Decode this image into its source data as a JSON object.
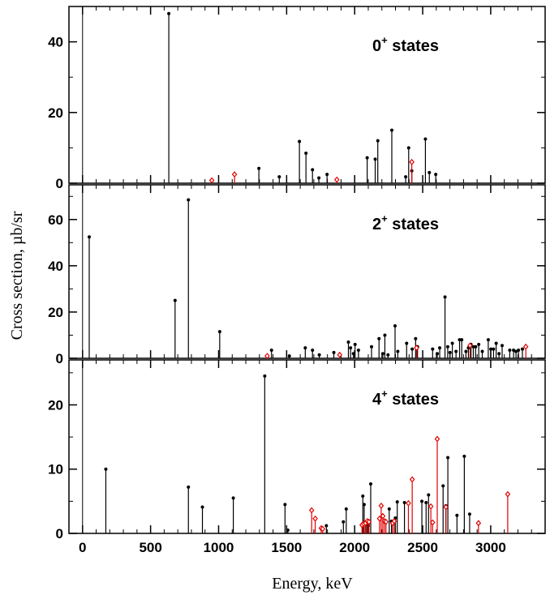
{
  "chart_data": {
    "type": "stem",
    "xlabel": "Energy, keV",
    "ylabel": "Cross section, µb/sr",
    "xlim": [
      -100,
      3400
    ],
    "xticks": [
      0,
      500,
      1000,
      1500,
      2000,
      2500,
      3000
    ],
    "colors": {
      "black_series": "#000000",
      "red_series": "#e00000"
    },
    "markers": {
      "black_series": "filled-dot",
      "red_series": "open-diamond"
    },
    "panels": [
      {
        "label_main": "0",
        "label_sup": "+",
        "label_rest": " states",
        "ylim": [
          0,
          50
        ],
        "yticks": [
          0,
          20,
          40
        ],
        "black": [
          [
            634,
            48
          ],
          [
            1296,
            4.2
          ],
          [
            1446,
            1.8
          ],
          [
            1594,
            11.8
          ],
          [
            1642,
            8.5
          ],
          [
            1690,
            3.8
          ],
          [
            1737,
            1.5
          ],
          [
            1797,
            2.5
          ],
          [
            2092,
            7.2
          ],
          [
            2151,
            6.8
          ],
          [
            2170,
            12
          ],
          [
            2273,
            15
          ],
          [
            2375,
            1.8
          ],
          [
            2397,
            10
          ],
          [
            2420,
            3.5
          ],
          [
            2520,
            12.5
          ],
          [
            2549,
            3
          ],
          [
            2596,
            2.5
          ]
        ],
        "red": [
          [
            950,
            0.8
          ],
          [
            1117,
            2.5
          ],
          [
            1869,
            1
          ],
          [
            2420,
            6
          ]
        ]
      },
      {
        "label_main": "2",
        "label_sup": "+",
        "label_rest": " states",
        "ylim": [
          0,
          75
        ],
        "yticks": [
          0,
          20,
          40,
          60
        ],
        "black": [
          [
            49,
            52.5
          ],
          [
            680,
            25
          ],
          [
            778,
            68.5
          ],
          [
            1008,
            11.5
          ],
          [
            1389,
            3.5
          ],
          [
            1520,
            1
          ],
          [
            1637,
            4.5
          ],
          [
            1690,
            3.5
          ],
          [
            1740,
            1.5
          ],
          [
            1847,
            2.5
          ],
          [
            1954,
            7
          ],
          [
            1970,
            4.5
          ],
          [
            1991,
            2
          ],
          [
            2003,
            6
          ],
          [
            2028,
            3.5
          ],
          [
            2124,
            5
          ],
          [
            2179,
            8.5
          ],
          [
            2207,
            2
          ],
          [
            2222,
            10
          ],
          [
            2245,
            1.5
          ],
          [
            2297,
            14
          ],
          [
            2317,
            3
          ],
          [
            2382,
            6.5
          ],
          [
            2423,
            4
          ],
          [
            2448,
            8.5
          ],
          [
            2462,
            5
          ],
          [
            2573,
            4
          ],
          [
            2607,
            2
          ],
          [
            2625,
            4.5
          ],
          [
            2664,
            26.5
          ],
          [
            2684,
            5
          ],
          [
            2701,
            2.5
          ],
          [
            2718,
            6.5
          ],
          [
            2745,
            3
          ],
          [
            2771,
            8
          ],
          [
            2787,
            8
          ],
          [
            2818,
            3
          ],
          [
            2836,
            4.5
          ],
          [
            2855,
            6
          ],
          [
            2872,
            5
          ],
          [
            2889,
            5
          ],
          [
            2912,
            6
          ],
          [
            2938,
            3
          ],
          [
            2982,
            8
          ],
          [
            3001,
            4
          ],
          [
            3021,
            4
          ],
          [
            3040,
            6.5
          ],
          [
            3061,
            2
          ],
          [
            3084,
            5.5
          ],
          [
            3140,
            3.5
          ],
          [
            3168,
            3.5
          ],
          [
            3186,
            3
          ],
          [
            3204,
            3.5
          ],
          [
            3233,
            4
          ]
        ],
        "red": [
          [
            1357,
            1
          ],
          [
            1890,
            1.5
          ],
          [
            2455,
            4.5
          ],
          [
            2848,
            5.5
          ],
          [
            3258,
            5
          ]
        ]
      },
      {
        "label_main": "4",
        "label_sup": "+",
        "label_rest": " states",
        "ylim": [
          0,
          27
        ],
        "yticks": [
          0,
          10,
          20
        ],
        "black": [
          [
            171,
            10
          ],
          [
            778,
            7.2
          ],
          [
            881,
            4.1
          ],
          [
            1108,
            5.5
          ],
          [
            1339,
            24.5
          ],
          [
            1488,
            4.5
          ],
          [
            1509,
            0.5
          ],
          [
            1792,
            1.2
          ],
          [
            1917,
            1.8
          ],
          [
            1938,
            3.8
          ],
          [
            2060,
            5.8
          ],
          [
            2070,
            4.5
          ],
          [
            2088,
            1.5
          ],
          [
            2100,
            1.2
          ],
          [
            2118,
            7.7
          ],
          [
            2254,
            3.8
          ],
          [
            2271,
            1.9
          ],
          [
            2299,
            2.4
          ],
          [
            2313,
            4.9
          ],
          [
            2366,
            4.8
          ],
          [
            2494,
            5
          ],
          [
            2525,
            4.8
          ],
          [
            2543,
            6
          ],
          [
            2650,
            7.4
          ],
          [
            2670,
            4.3
          ],
          [
            2685,
            11.8
          ],
          [
            2752,
            2.8
          ],
          [
            2806,
            12
          ],
          [
            2845,
            3
          ]
        ],
        "red": [
          [
            1684,
            3.6
          ],
          [
            1710,
            2.3
          ],
          [
            1754,
            0.8
          ],
          [
            1765,
            0.7
          ],
          [
            2054,
            1.3
          ],
          [
            2066,
            1.5
          ],
          [
            2080,
            1.6
          ],
          [
            2093,
            1.9
          ],
          [
            2105,
            1.8
          ],
          [
            2183,
            2.3
          ],
          [
            2195,
            4.3
          ],
          [
            2207,
            2.7
          ],
          [
            2219,
            1.9
          ],
          [
            2230,
            1.8
          ],
          [
            2279,
            1.6
          ],
          [
            2291,
            1.9
          ],
          [
            2395,
            4.7
          ],
          [
            2423,
            8.4
          ],
          [
            2560,
            4.2
          ],
          [
            2573,
            1.7
          ],
          [
            2607,
            14.7
          ],
          [
            2671,
            4.1
          ],
          [
            2910,
            1.6
          ],
          [
            3125,
            6.1
          ]
        ]
      }
    ]
  }
}
